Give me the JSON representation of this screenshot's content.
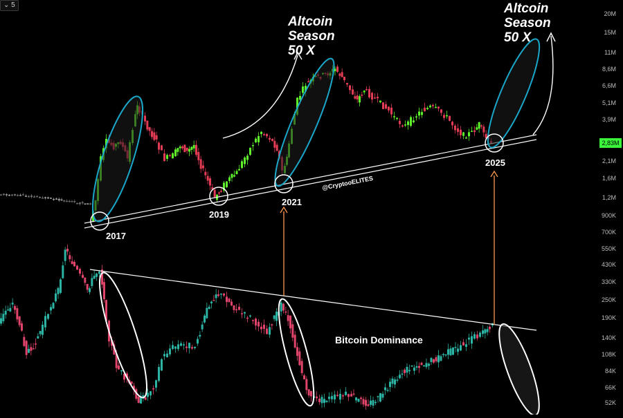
{
  "toolbar": {
    "timeframe_label": "5"
  },
  "colors": {
    "background": "#000000",
    "altcap_up": "#5ef22a",
    "altcap_down": "#e23b54",
    "dominance_up": "#2bb3a3",
    "dominance_down": "#e0446a",
    "ellipse_cyan": "#1aa7c9",
    "arrow_orange": "#ff9a4d",
    "trendline": "#ffffff",
    "axis_text": "#bdbdbd",
    "last_price_bg": "#3bf53b"
  },
  "annotations": {
    "season_left": [
      "Altcoin",
      "Season",
      "50 X"
    ],
    "season_right": [
      "Altcoin",
      "Season",
      "50 X"
    ],
    "year_labels": [
      "2017",
      "2019",
      "2021",
      "2025"
    ],
    "watermark": "@CryptooELITES",
    "dominance_label": "Bitcoin Dominance"
  },
  "chart_data": {
    "type": "candlestick",
    "title": "",
    "y_axis": {
      "scale": "log",
      "tick_labels": [
        "20M",
        "15M",
        "11M",
        "8,6M",
        "6,6M",
        "5,1M",
        "3,9M",
        "2,83M",
        "2,1M",
        "1,6M",
        "1,2M",
        "900K",
        "700K",
        "550K",
        "430K",
        "330K",
        "250K",
        "190K",
        "140K",
        "108K",
        "84K",
        "66K",
        "52K"
      ],
      "last_price_label": "2,83M"
    },
    "series": [
      {
        "name": "",
        "type": "candlestick-line",
        "approx_path_values": [
          [
            "2017",
            0.9
          ],
          [
            "2017",
            3.0
          ],
          [
            "2018",
            5.1
          ],
          [
            "2018",
            3.0
          ],
          [
            "2019",
            1.3
          ],
          [
            "2019",
            3.5
          ],
          [
            "2020",
            2.0
          ],
          [
            "2021",
            1.8
          ],
          [
            "2021",
            6.6
          ],
          [
            "2021",
            9.0
          ],
          [
            "2022",
            5.1
          ],
          [
            "2023",
            3.9
          ],
          [
            "2024",
            4.5
          ],
          [
            "2025",
            2.83
          ]
        ]
      },
      {
        "name": "Bitcoin Dominance",
        "type": "candlestick-line",
        "approx_path_values": [
          [
            "2017",
            190
          ],
          [
            "2017",
            90
          ],
          [
            "2018",
            55
          ],
          [
            "2019",
            130
          ],
          [
            "2020",
            250
          ],
          [
            "2021",
            250
          ],
          [
            "2021",
            60
          ],
          [
            "2022",
            52
          ],
          [
            "2023",
            70
          ],
          [
            "2024",
            120
          ],
          [
            "2025",
            160
          ]
        ]
      }
    ]
  }
}
